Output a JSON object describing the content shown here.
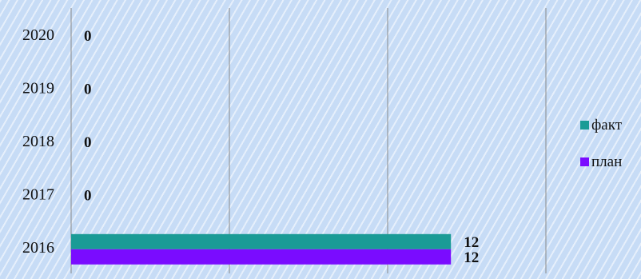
{
  "chart_data": {
    "type": "bar",
    "orientation": "horizontal",
    "categories": [
      "2016",
      "2017",
      "2018",
      "2019",
      "2020"
    ],
    "series": [
      {
        "name": "факт",
        "values": [
          12,
          0,
          0,
          0,
          0
        ],
        "color": "#1a9b96"
      },
      {
        "name": "план",
        "values": [
          12,
          0,
          0,
          0,
          0
        ],
        "color": "#7a0cff"
      }
    ],
    "xlim": [
      0,
      15
    ],
    "grid": true,
    "legend": "right"
  }
}
